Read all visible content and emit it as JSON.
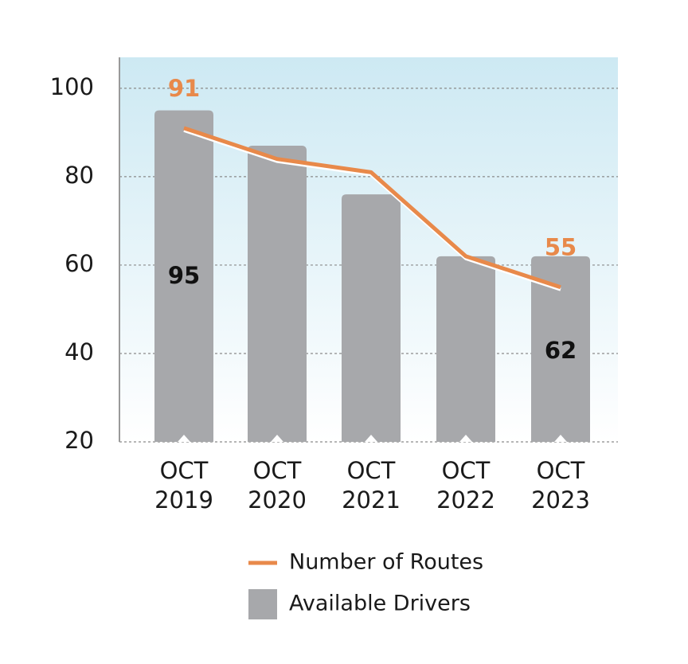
{
  "chart_data": {
    "type": "combo",
    "categories": [
      "OCT 2019",
      "OCT 2020",
      "OCT 2021",
      "OCT 2022",
      "OCT 2023"
    ],
    "series": [
      {
        "name": "Available Drivers",
        "type": "bar",
        "color": "#a7a8ab",
        "label_color": "#111111",
        "values": [
          95,
          87,
          76,
          62,
          62
        ],
        "show_labels": [
          true,
          false,
          false,
          false,
          true
        ]
      },
      {
        "name": "Number of Routes",
        "type": "line",
        "color": "#e8894a",
        "label_color": "#e8894a",
        "values": [
          91,
          84,
          81,
          62,
          55
        ],
        "show_labels": [
          true,
          false,
          false,
          false,
          true
        ]
      }
    ],
    "ylim": [
      20,
      107
    ],
    "yticks": [
      20,
      40,
      60,
      80,
      100
    ],
    "grid": true,
    "legend": "bottom"
  }
}
